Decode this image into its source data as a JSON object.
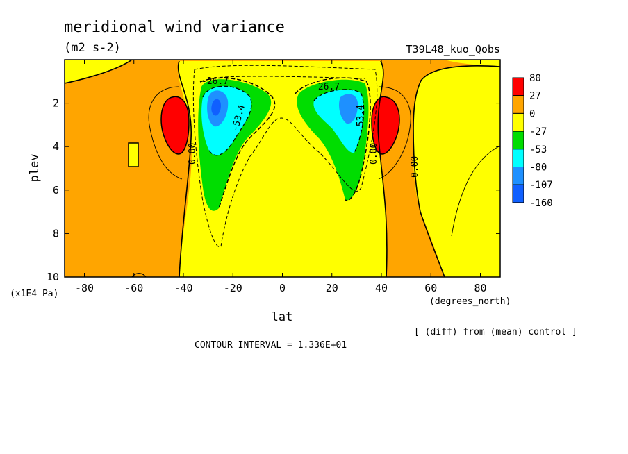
{
  "chart_data": {
    "type": "contour",
    "title": "meridional wind variance",
    "units": "(m2 s-2)",
    "run_label": "T39L48_kuo_Qobs",
    "xlabel": "lat",
    "xunits": "(degrees_north)",
    "ylabel": "plev",
    "yunits": "(x1E4 Pa)",
    "xlim": [
      -88,
      88
    ],
    "ylim": [
      10,
      0
    ],
    "x_ticks": [
      -80,
      -60,
      -40,
      -20,
      0,
      20,
      40,
      60,
      80
    ],
    "y_ticks": [
      2,
      4,
      6,
      8,
      10
    ],
    "x_tick_labels": [
      "-80",
      "-60",
      "-40",
      "-20",
      "0",
      "20",
      "40",
      "60",
      "80"
    ],
    "y_tick_labels": [
      "2",
      "4",
      "6",
      "8",
      "10"
    ],
    "diff_note": "[ (diff) from (mean) control ]",
    "contour_interval_text": "CONTOUR INTERVAL = 1.336E+01",
    "contour_labels": [
      "-26.7",
      "-26.7",
      "-53.4",
      "-53.4",
      "0.00",
      "0.00",
      "0.00"
    ],
    "legend": {
      "levels": [
        "80",
        "27",
        "0",
        "-27",
        "-53",
        "-80",
        "-107",
        "-160"
      ],
      "colors": [
        "#ff0000",
        "#ffa500",
        "#ffff00",
        "#00dd00",
        "#00ffff",
        "#1e90ff",
        "#1060ff"
      ]
    },
    "features": [
      {
        "type": "positive max",
        "lat": -44,
        "plev": 3,
        "range": "27 to 80"
      },
      {
        "type": "positive max",
        "lat": 44,
        "plev": 3,
        "range": "27 to 80"
      },
      {
        "type": "negative min",
        "lat": -27,
        "plev": 2.5,
        "range": "-160 to -80"
      },
      {
        "type": "negative min",
        "lat": 28,
        "plev": 2.5,
        "range": "-107 to -80"
      }
    ]
  }
}
